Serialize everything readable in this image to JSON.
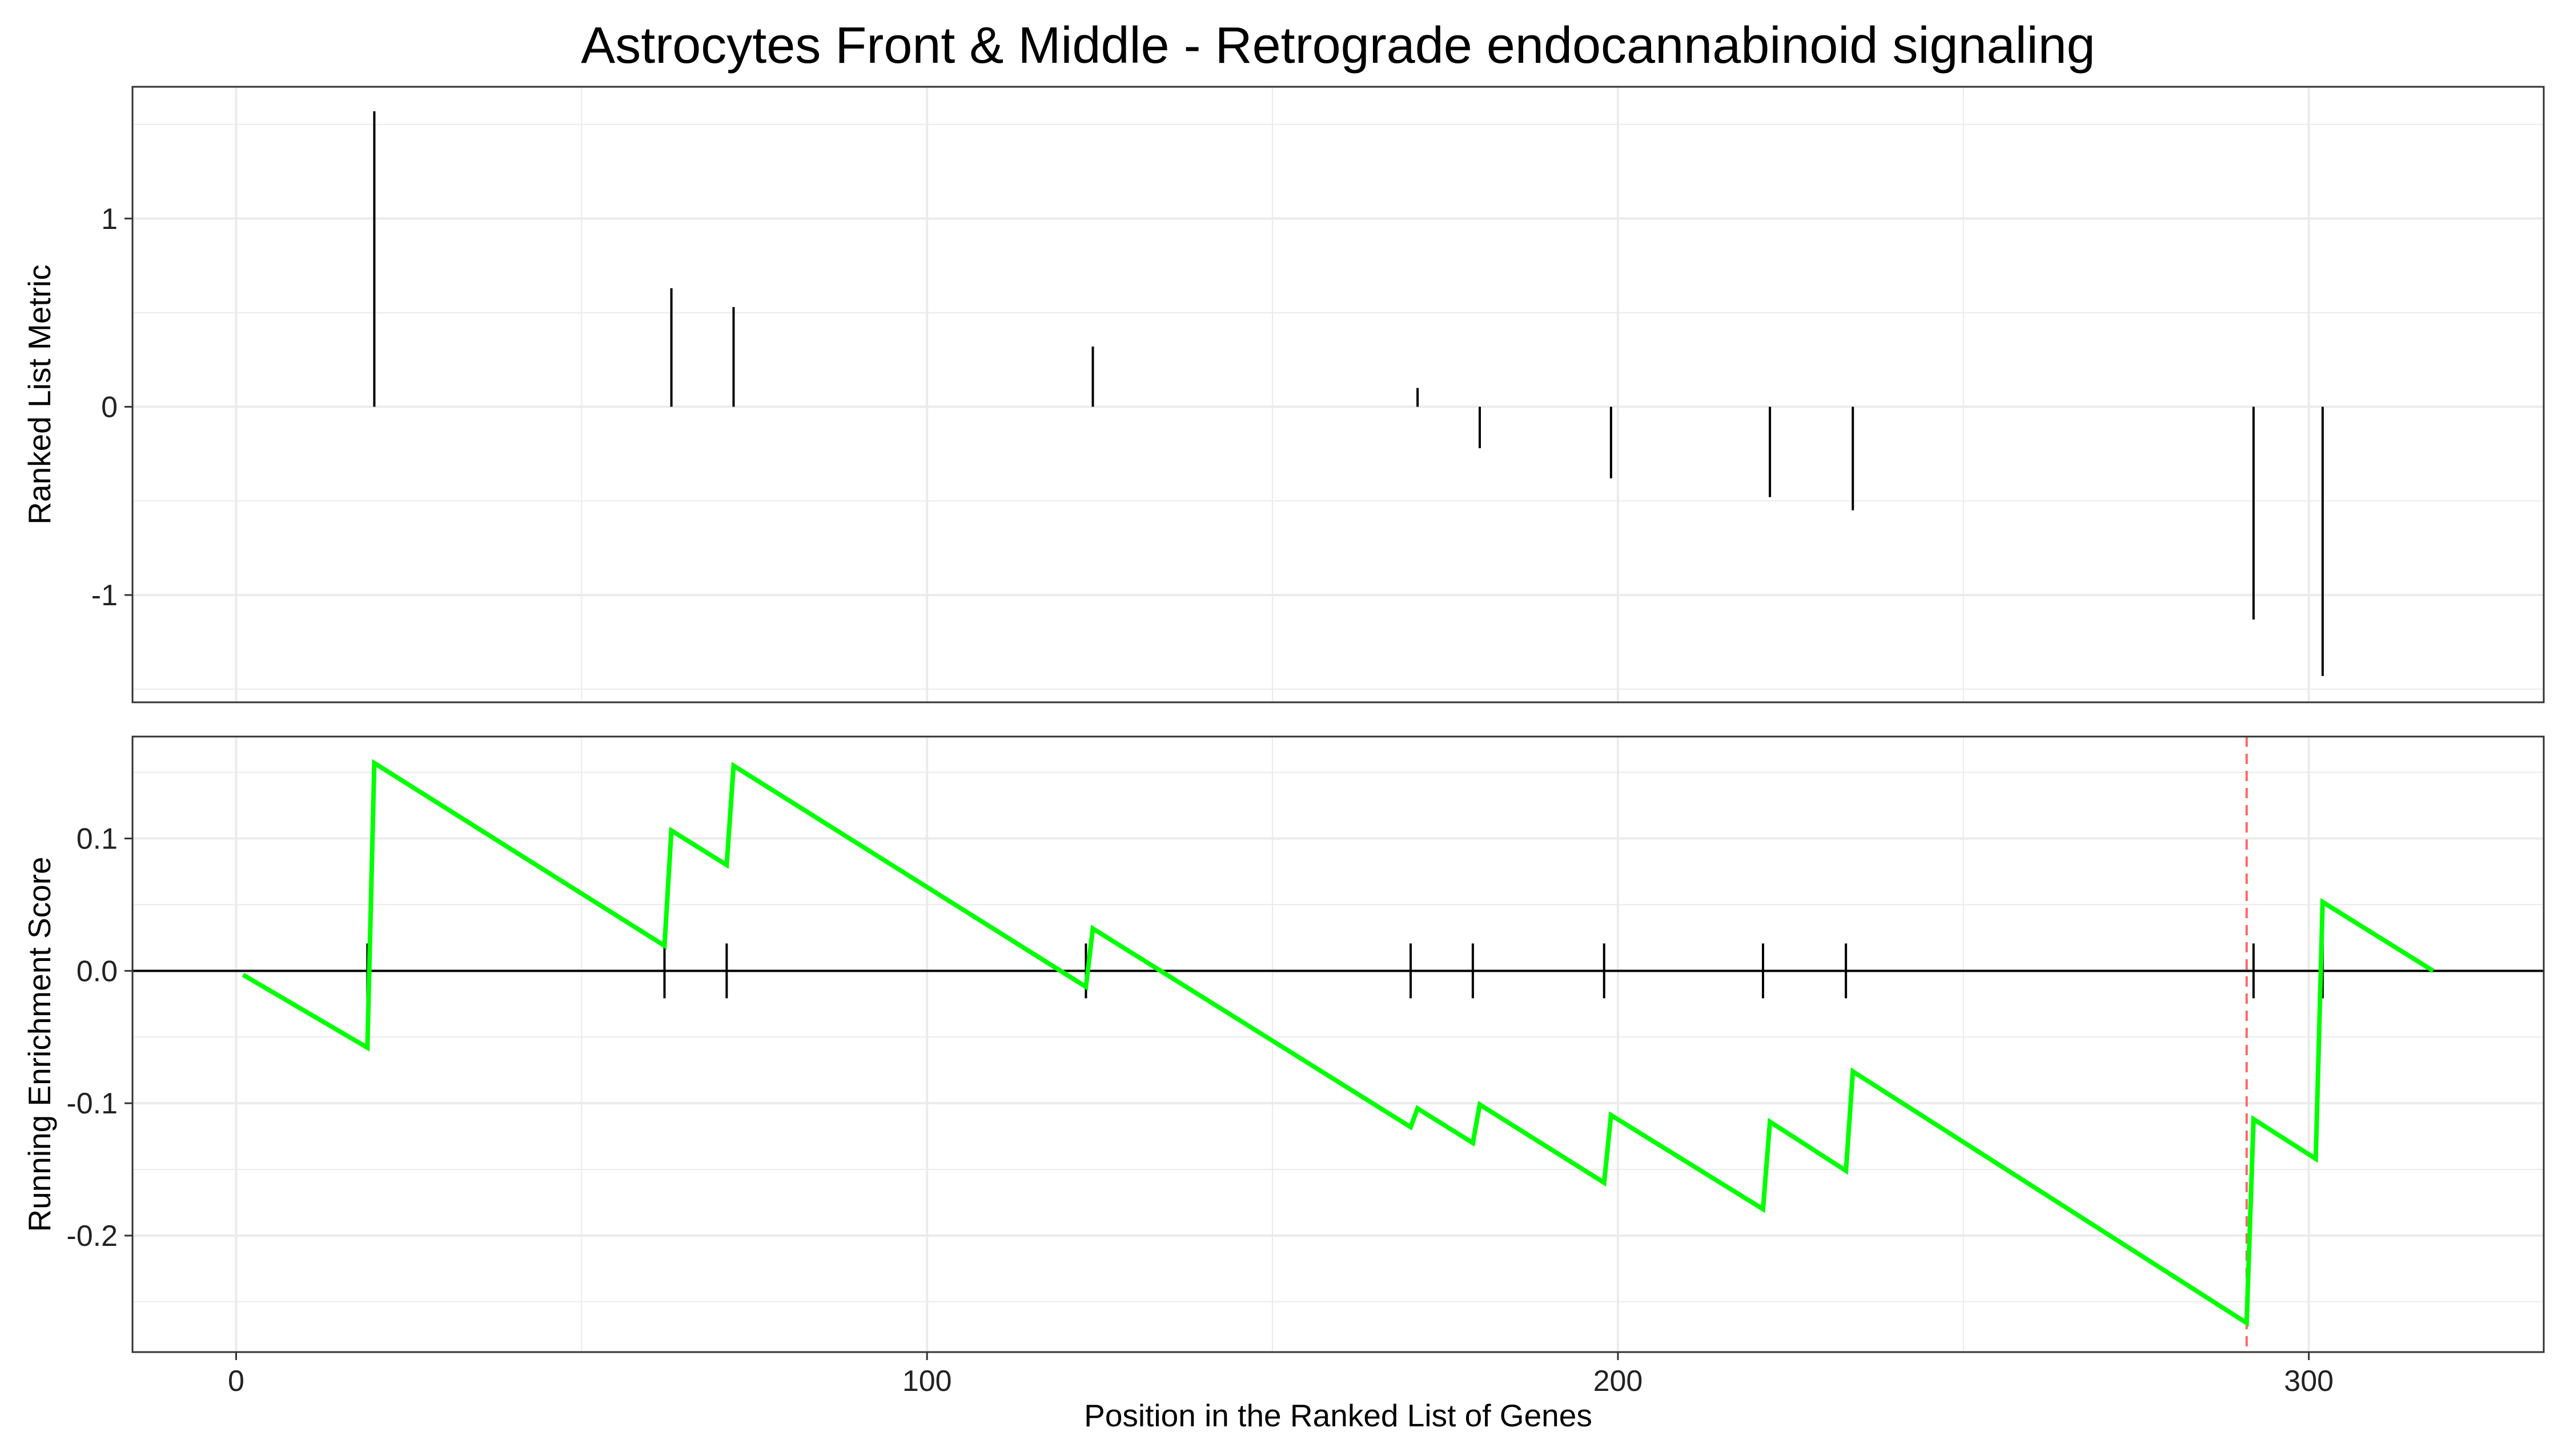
{
  "chart_data": {
    "title": "Astrocytes Front & Middle - Retrograde endocannabinoid signaling",
    "xlabel": "Position in the Ranked List of Genes",
    "x_ticks": [
      0,
      100,
      200,
      300
    ],
    "xlim": [
      -15,
      334
    ],
    "colors": {
      "running_score": "#00ff00",
      "peak_line": "#ff6666",
      "stems": "#000000",
      "grid": "#ebebeb",
      "panel_border": "#333333"
    },
    "panels": [
      {
        "name": "ranked-metric",
        "type": "stem",
        "ylabel": "Ranked List Metric",
        "ylim": [
          -1.57,
          1.7
        ],
        "y_ticks": [
          {
            "value": 1,
            "label": "1"
          },
          {
            "value": 0,
            "label": "0"
          },
          {
            "value": -1,
            "label": "-1"
          }
        ],
        "points": [
          {
            "x": 20,
            "y": 1.57
          },
          {
            "x": 63,
            "y": 0.63
          },
          {
            "x": 72,
            "y": 0.53
          },
          {
            "x": 124,
            "y": 0.32
          },
          {
            "x": 171,
            "y": 0.1
          },
          {
            "x": 180,
            "y": -0.22
          },
          {
            "x": 199,
            "y": -0.38
          },
          {
            "x": 222,
            "y": -0.48
          },
          {
            "x": 234,
            "y": -0.55
          },
          {
            "x": 292,
            "y": -1.13
          },
          {
            "x": 302,
            "y": -1.43
          }
        ]
      },
      {
        "name": "running-enrichment",
        "type": "line",
        "ylabel": "Running Enrichment Score",
        "ylim": [
          -0.288,
          0.177
        ],
        "y_ticks": [
          {
            "value": 0.1,
            "label": "0.1"
          },
          {
            "value": 0.0,
            "label": "0.0"
          },
          {
            "value": -0.1,
            "label": "-0.1"
          },
          {
            "value": -0.2,
            "label": "-0.2"
          }
        ],
        "baseline": 0,
        "peak_x": 291,
        "hits": [
          19,
          62,
          71,
          123,
          170,
          179,
          198,
          221,
          233,
          292,
          302
        ],
        "series": [
          {
            "x": [
              1,
              19,
              20,
              62,
              63,
              71,
              72,
              123,
              124,
              170,
              171,
              179,
              180,
              198,
              199,
              221,
              222,
              233,
              234,
              291,
              292,
              301,
              302,
              318
            ],
            "y": [
              -0.003,
              -0.058,
              0.157,
              0.019,
              0.106,
              0.08,
              0.155,
              -0.012,
              0.032,
              -0.118,
              -0.104,
              -0.13,
              -0.101,
              -0.16,
              -0.109,
              -0.18,
              -0.114,
              -0.151,
              -0.076,
              -0.266,
              -0.112,
              -0.142,
              0.052,
              0.0
            ]
          }
        ]
      }
    ]
  }
}
